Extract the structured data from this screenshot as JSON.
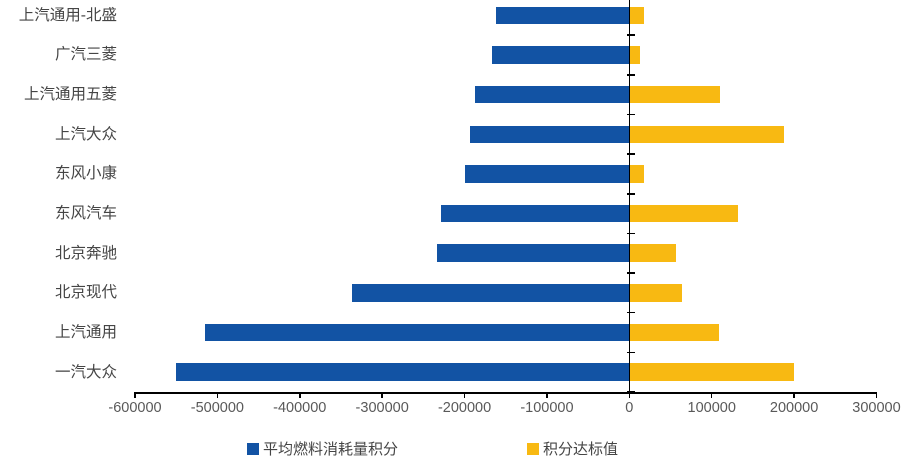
{
  "chart_data": {
    "type": "bar",
    "orientation": "horizontal",
    "title": "",
    "xlabel": "",
    "ylabel": "",
    "categories": [
      "上汽通用-北盛",
      "广汽三菱",
      "上汽通用五菱",
      "上汽大众",
      "东风小康",
      "东风汽车",
      "北京奔驰",
      "北京现代",
      "上汽通用",
      "一汽大众"
    ],
    "series": [
      {
        "name": "平均燃料消耗量积分",
        "color": "#1253A4",
        "values": [
          -162000,
          -167000,
          -187000,
          -193000,
          -199000,
          -228000,
          -233000,
          -337000,
          -515000,
          -550000
        ]
      },
      {
        "name": "积分达标值",
        "color": "#F8B912",
        "values": [
          18000,
          13000,
          110000,
          188000,
          18000,
          132000,
          57000,
          64000,
          109000,
          200000
        ]
      }
    ],
    "xlim": [
      -600000,
      300000
    ],
    "xticks": [
      -600000,
      -500000,
      -400000,
      -300000,
      -200000,
      -100000,
      0,
      100000,
      200000,
      300000
    ],
    "xtick_labels": [
      "-600000",
      "-500000",
      "-400000",
      "-300000",
      "-200000",
      "-100000",
      "0",
      "100000",
      "200000",
      "300000"
    ],
    "grid": false,
    "legend_position": "bottom",
    "background_color": "#ffffff",
    "axis_color": "#000000",
    "tick_label_color": "#595959",
    "category_label_color": "#454545"
  }
}
